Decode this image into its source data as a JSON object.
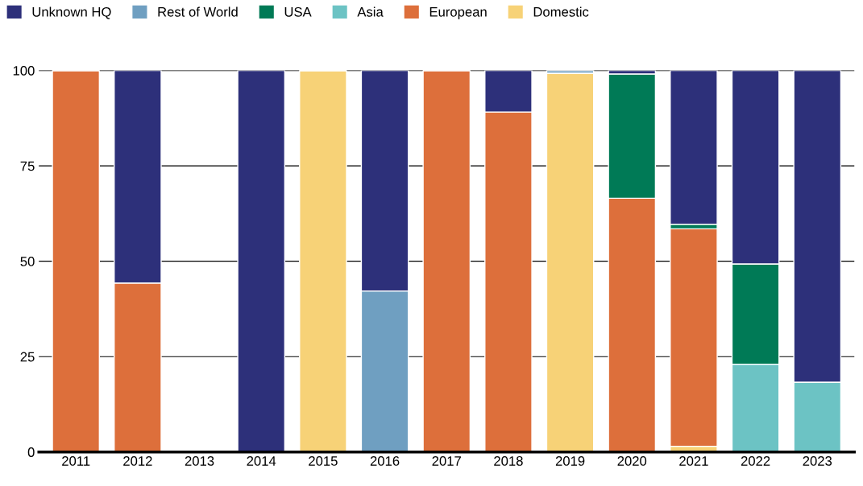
{
  "chart_data": {
    "type": "bar",
    "stacked": true,
    "categories": [
      "2011",
      "2012",
      "2013",
      "2014",
      "2015",
      "2016",
      "2017",
      "2018",
      "2019",
      "2020",
      "2021",
      "2022",
      "2023"
    ],
    "series": [
      {
        "name": "Domestic",
        "color": "#f7d277",
        "values": [
          null,
          null,
          null,
          null,
          100,
          null,
          null,
          null,
          99.3,
          null,
          1.5,
          null,
          null
        ]
      },
      {
        "name": "European",
        "color": "#dd6f3b",
        "values": [
          100,
          44.3,
          null,
          null,
          null,
          null,
          100,
          89.1,
          null,
          66.5,
          57,
          null,
          null
        ]
      },
      {
        "name": "Asia",
        "color": "#6cc3c4",
        "values": [
          null,
          null,
          null,
          null,
          null,
          null,
          null,
          null,
          null,
          null,
          null,
          23,
          18.3
        ]
      },
      {
        "name": "USA",
        "color": "#007a56",
        "values": [
          null,
          null,
          null,
          null,
          null,
          null,
          null,
          null,
          null,
          32.6,
          1.2,
          26.3,
          null
        ]
      },
      {
        "name": "Rest of World",
        "color": "#6f9fc1",
        "values": [
          null,
          null,
          null,
          null,
          null,
          42.2,
          null,
          null,
          0.7,
          null,
          null,
          null,
          null
        ]
      },
      {
        "name": "Unknown HQ",
        "color": "#2d307a",
        "values": [
          null,
          55.7,
          null,
          100,
          null,
          57.8,
          null,
          10.9,
          null,
          0.9,
          40.3,
          50.7,
          81.7
        ]
      }
    ],
    "ylim": [
      0,
      100
    ],
    "yticks": [
      0,
      25,
      50,
      75,
      100
    ],
    "grid": "y",
    "legend": "top left"
  }
}
